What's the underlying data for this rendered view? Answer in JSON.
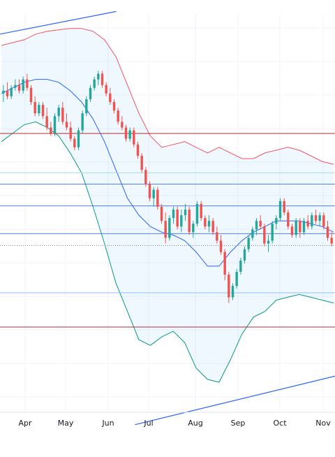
{
  "chart_data": {
    "type": "candlestick",
    "x_axis": {
      "tick_labels": [
        "Apr",
        "May",
        "Jun",
        "Jul",
        "Aug",
        "Sep",
        "Oct",
        "Nov"
      ],
      "range_days": [
        0,
        290
      ]
    },
    "y_axis": {
      "range": [
        0,
        100
      ],
      "labels_visible": false
    },
    "grid": true,
    "colors": {
      "up": "#26a69a",
      "down": "#ef5350",
      "bb_upper": "#f7525f",
      "bb_middle": "#2962ff",
      "bb_lower": "#089981",
      "bb_fill": "#2196f3",
      "dark_red_level": "#b22833",
      "blue_level": "#2962ff",
      "light_blue_level": "#90bff9",
      "teal_level": "#a5dde0",
      "trendline": "#2962ff",
      "dotted_level": "#787b86"
    },
    "candles": [
      {
        "o": 83,
        "h": 86,
        "l": 80,
        "c": 84
      },
      {
        "o": 84,
        "h": 87,
        "l": 81,
        "c": 82
      },
      {
        "o": 82,
        "h": 86,
        "l": 81,
        "c": 85
      },
      {
        "o": 85,
        "h": 88,
        "l": 84,
        "c": 86
      },
      {
        "o": 86,
        "h": 88,
        "l": 83,
        "c": 84
      },
      {
        "o": 84,
        "h": 89,
        "l": 83,
        "c": 88
      },
      {
        "o": 88,
        "h": 90,
        "l": 84,
        "c": 85
      },
      {
        "o": 85,
        "h": 86,
        "l": 79,
        "c": 80
      },
      {
        "o": 80,
        "h": 82,
        "l": 75,
        "c": 76
      },
      {
        "o": 76,
        "h": 80,
        "l": 75,
        "c": 79
      },
      {
        "o": 79,
        "h": 80,
        "l": 74,
        "c": 75
      },
      {
        "o": 75,
        "h": 78,
        "l": 70,
        "c": 71
      },
      {
        "o": 71,
        "h": 73,
        "l": 68,
        "c": 69
      },
      {
        "o": 69,
        "h": 76,
        "l": 68,
        "c": 75
      },
      {
        "o": 75,
        "h": 79,
        "l": 73,
        "c": 78
      },
      {
        "o": 78,
        "h": 80,
        "l": 72,
        "c": 73
      },
      {
        "o": 73,
        "h": 76,
        "l": 70,
        "c": 71
      },
      {
        "o": 71,
        "h": 73,
        "l": 66,
        "c": 67
      },
      {
        "o": 67,
        "h": 68,
        "l": 63,
        "c": 64
      },
      {
        "o": 64,
        "h": 71,
        "l": 63,
        "c": 70
      },
      {
        "o": 70,
        "h": 77,
        "l": 69,
        "c": 76
      },
      {
        "o": 76,
        "h": 82,
        "l": 75,
        "c": 81
      },
      {
        "o": 81,
        "h": 86,
        "l": 80,
        "c": 85
      },
      {
        "o": 85,
        "h": 89,
        "l": 84,
        "c": 88
      },
      {
        "o": 88,
        "h": 91,
        "l": 86,
        "c": 90
      },
      {
        "o": 90,
        "h": 91,
        "l": 85,
        "c": 86
      },
      {
        "o": 86,
        "h": 87,
        "l": 82,
        "c": 83
      },
      {
        "o": 83,
        "h": 85,
        "l": 79,
        "c": 80
      },
      {
        "o": 80,
        "h": 81,
        "l": 76,
        "c": 77
      },
      {
        "o": 77,
        "h": 78,
        "l": 72,
        "c": 73
      },
      {
        "o": 73,
        "h": 75,
        "l": 70,
        "c": 71
      },
      {
        "o": 71,
        "h": 72,
        "l": 66,
        "c": 67
      },
      {
        "o": 67,
        "h": 71,
        "l": 66,
        "c": 70
      },
      {
        "o": 70,
        "h": 71,
        "l": 64,
        "c": 65
      },
      {
        "o": 65,
        "h": 66,
        "l": 60,
        "c": 61
      },
      {
        "o": 61,
        "h": 62,
        "l": 55,
        "c": 56
      },
      {
        "o": 56,
        "h": 57,
        "l": 50,
        "c": 51
      },
      {
        "o": 51,
        "h": 52,
        "l": 45,
        "c": 46
      },
      {
        "o": 46,
        "h": 50,
        "l": 43,
        "c": 49
      },
      {
        "o": 49,
        "h": 50,
        "l": 42,
        "c": 43
      },
      {
        "o": 43,
        "h": 44,
        "l": 37,
        "c": 38
      },
      {
        "o": 38,
        "h": 41,
        "l": 30,
        "c": 32
      },
      {
        "o": 32,
        "h": 40,
        "l": 31,
        "c": 39
      },
      {
        "o": 39,
        "h": 43,
        "l": 37,
        "c": 42
      },
      {
        "o": 42,
        "h": 43,
        "l": 35,
        "c": 36
      },
      {
        "o": 36,
        "h": 42,
        "l": 34,
        "c": 40
      },
      {
        "o": 40,
        "h": 44,
        "l": 38,
        "c": 42
      },
      {
        "o": 42,
        "h": 43,
        "l": 33,
        "c": 34
      },
      {
        "o": 34,
        "h": 38,
        "l": 32,
        "c": 37
      },
      {
        "o": 37,
        "h": 45,
        "l": 36,
        "c": 44
      },
      {
        "o": 44,
        "h": 45,
        "l": 38,
        "c": 39
      },
      {
        "o": 39,
        "h": 40,
        "l": 35,
        "c": 36
      },
      {
        "o": 36,
        "h": 40,
        "l": 34,
        "c": 38
      },
      {
        "o": 38,
        "h": 39,
        "l": 33,
        "c": 34
      },
      {
        "o": 34,
        "h": 36,
        "l": 30,
        "c": 31
      },
      {
        "o": 31,
        "h": 33,
        "l": 26,
        "c": 27
      },
      {
        "o": 27,
        "h": 28,
        "l": 17,
        "c": 19
      },
      {
        "o": 19,
        "h": 20,
        "l": 9,
        "c": 11
      },
      {
        "o": 11,
        "h": 16,
        "l": 10,
        "c": 15
      },
      {
        "o": 15,
        "h": 21,
        "l": 14,
        "c": 20
      },
      {
        "o": 20,
        "h": 25,
        "l": 19,
        "c": 24
      },
      {
        "o": 24,
        "h": 29,
        "l": 23,
        "c": 28
      },
      {
        "o": 28,
        "h": 33,
        "l": 27,
        "c": 32
      },
      {
        "o": 32,
        "h": 36,
        "l": 31,
        "c": 35
      },
      {
        "o": 35,
        "h": 39,
        "l": 33,
        "c": 38
      },
      {
        "o": 38,
        "h": 40,
        "l": 35,
        "c": 36
      },
      {
        "o": 36,
        "h": 37,
        "l": 29,
        "c": 30
      },
      {
        "o": 30,
        "h": 33,
        "l": 27,
        "c": 31
      },
      {
        "o": 31,
        "h": 38,
        "l": 30,
        "c": 37
      },
      {
        "o": 37,
        "h": 40,
        "l": 35,
        "c": 39
      },
      {
        "o": 39,
        "h": 46,
        "l": 38,
        "c": 45
      },
      {
        "o": 45,
        "h": 46,
        "l": 40,
        "c": 41
      },
      {
        "o": 41,
        "h": 42,
        "l": 35,
        "c": 36
      },
      {
        "o": 36,
        "h": 37,
        "l": 32,
        "c": 33
      },
      {
        "o": 33,
        "h": 39,
        "l": 32,
        "c": 38
      },
      {
        "o": 38,
        "h": 39,
        "l": 32,
        "c": 34
      },
      {
        "o": 34,
        "h": 39,
        "l": 33,
        "c": 38
      },
      {
        "o": 38,
        "h": 40,
        "l": 35,
        "c": 36
      },
      {
        "o": 36,
        "h": 41,
        "l": 35,
        "c": 40
      },
      {
        "o": 40,
        "h": 42,
        "l": 37,
        "c": 38
      },
      {
        "o": 38,
        "h": 41,
        "l": 36,
        "c": 40
      },
      {
        "o": 40,
        "h": 41,
        "l": 35,
        "c": 36
      },
      {
        "o": 36,
        "h": 38,
        "l": 31,
        "c": 32
      },
      {
        "o": 32,
        "h": 34,
        "l": 29,
        "c": 30
      }
    ],
    "bollinger": {
      "upper": [
        100,
        101,
        102,
        104,
        105,
        105.5,
        106,
        106,
        105,
        102,
        96,
        86,
        76,
        68,
        64,
        65,
        66,
        64,
        62,
        64,
        62,
        60,
        60,
        62,
        63,
        64,
        63,
        61,
        59,
        58
      ],
      "middle": [
        83,
        85,
        87,
        88,
        88,
        87,
        84,
        80,
        74,
        66,
        56,
        46,
        40,
        36,
        34,
        33,
        31,
        27,
        22,
        22,
        27,
        31,
        34,
        36,
        38,
        38,
        38,
        37,
        36,
        34
      ],
      "lower": [
        66,
        69,
        72,
        73,
        71,
        68,
        62,
        55,
        43,
        30,
        16,
        6,
        -4,
        -6,
        -3,
        -1,
        -5,
        -14,
        -18,
        -19,
        -11,
        -2,
        4,
        6,
        10,
        11,
        12,
        11,
        10,
        9
      ]
    },
    "levels": {
      "dark_red": [
        68.9,
        0.5
      ],
      "teal": [
        55
      ],
      "blue": [
        51,
        43.3,
        33.5
      ],
      "dotted": [
        29.3
      ],
      "light_blue": [
        12.6
      ]
    },
    "trendlines": [
      {
        "from": [
          -10,
          104
        ],
        "to": [
          105,
          112
        ]
      },
      {
        "from": [
          105,
          -34
        ],
        "to": [
          300,
          -16
        ]
      }
    ]
  }
}
